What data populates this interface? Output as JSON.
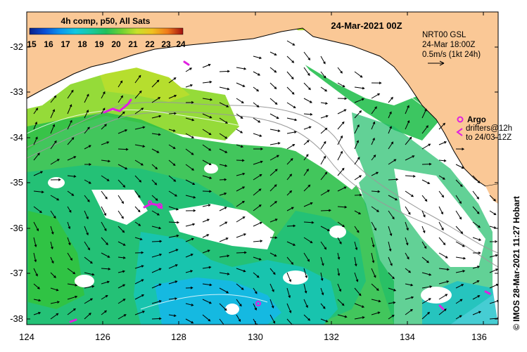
{
  "legend": {
    "title": "4h comp, p50, All Sats",
    "ticks": [
      "15",
      "16",
      "17",
      "18",
      "19",
      "20",
      "21",
      "22",
      "23",
      "24"
    ],
    "colors": [
      "#08208a",
      "#0a4fd6",
      "#0b96ee",
      "#10c8e0",
      "#19c9a0",
      "#22c05a",
      "#6fd133",
      "#c8e02a",
      "#f0c020",
      "#f07a1a",
      "#d02a10",
      "#a01010"
    ]
  },
  "map_title": "24-Mar-2021 00Z",
  "info": {
    "line1": "NRT00 GSL",
    "line2": "24-Mar 18:00Z",
    "line3": "0.5m/s (1kt 24h)"
  },
  "argo": {
    "label": "Argo",
    "line2": "drifters@12h",
    "line3": "to 24/03-12Z"
  },
  "credit": "© IMOS 28-Mar-2021 11:27 Hobart",
  "axes": {
    "x_labels": [
      "124",
      "126",
      "128",
      "130",
      "132",
      "134",
      "136"
    ],
    "y_labels": [
      "-32",
      "-33",
      "-34",
      "-35",
      "-36",
      "-37",
      "-38"
    ]
  },
  "colors": {
    "land": "#fac896",
    "frame": "#000000",
    "arrow": "#000000",
    "argo": "#e020e0"
  }
}
